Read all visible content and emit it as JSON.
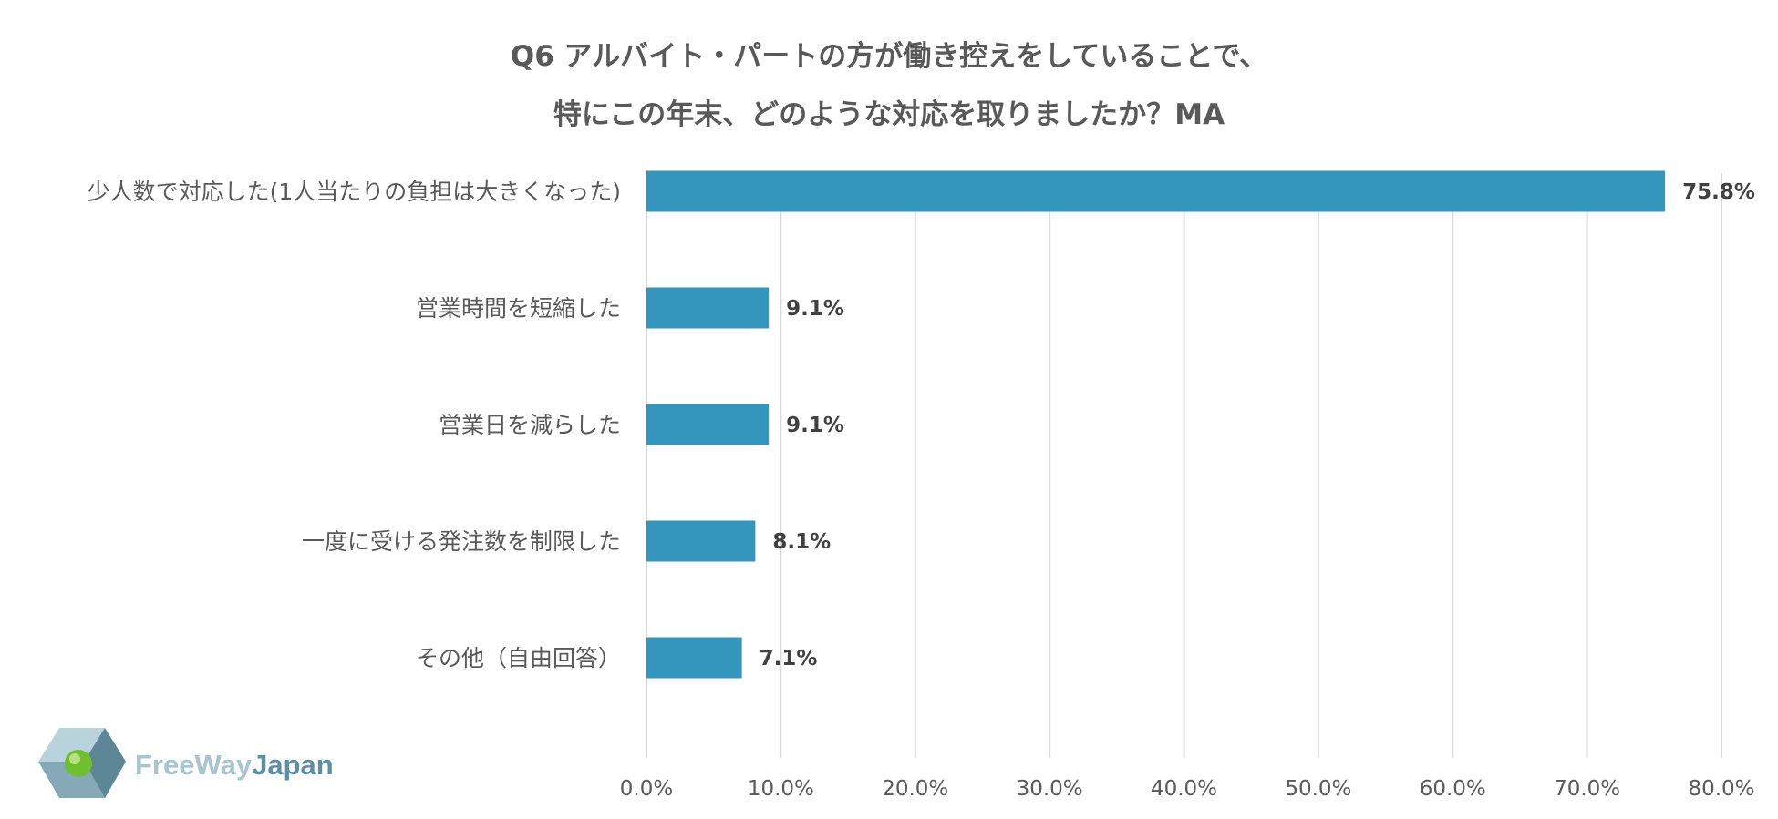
{
  "chart_data": {
    "type": "bar",
    "orientation": "horizontal",
    "title": [
      "Q6 アルバイト・パートの方が働き控えをしていることで、",
      "特にこの年末、どのような対応を取りましたか？MA"
    ],
    "categories": [
      "少人数で対応した(1人当たりの負担は大きくなった)",
      "営業時間を短縮した",
      "営業日を減らした",
      "一度に受ける発注数を制限した",
      "その他（自由回答）"
    ],
    "values": [
      75.8,
      9.1,
      9.1,
      8.1,
      7.1
    ],
    "data_labels": [
      "75.8%",
      "9.1%",
      "9.1%",
      "8.1%",
      "7.1%"
    ],
    "xlim": [
      0,
      80
    ],
    "ticks": [
      "0.0%",
      "10.0%",
      "20.0%",
      "30.0%",
      "40.0%",
      "50.0%",
      "60.0%",
      "70.0%",
      "80.0%"
    ],
    "grid": true,
    "bar_color": "#3596bd",
    "grid_color": "#d9d9d9"
  },
  "logo": {
    "part1": "FreeWay",
    "part2": "Japan"
  }
}
